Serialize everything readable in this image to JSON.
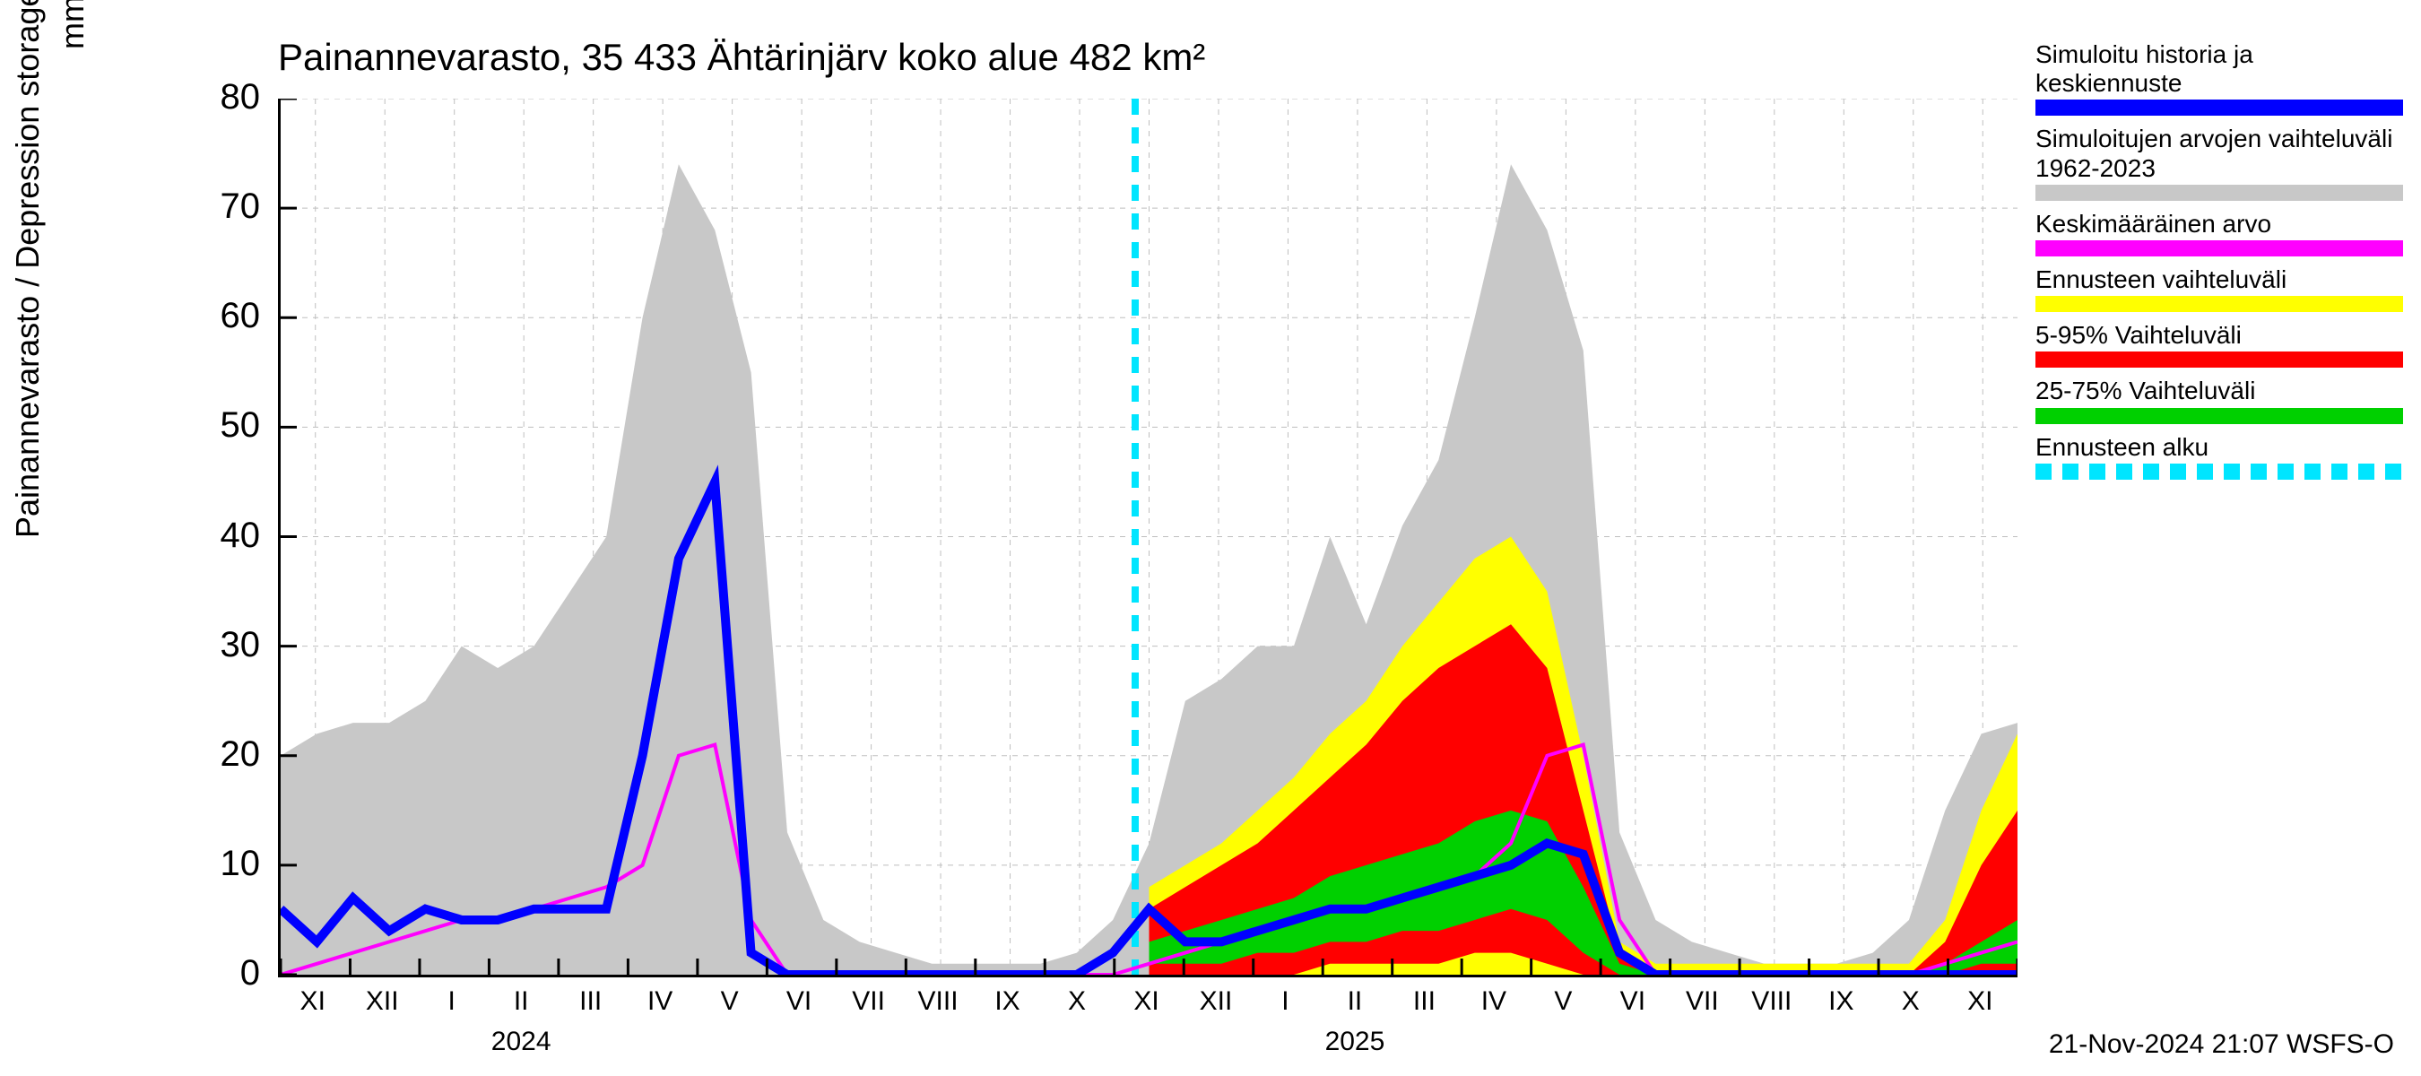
{
  "chart": {
    "type": "area-line-timeseries",
    "title": "Painannevarasto, 35 433 Ähtärinjärv koko alue 482 km²",
    "y_axis_label": "Painannevarasto / Depression storage",
    "y_unit": "mm",
    "footer": "21-Nov-2024 21:07 WSFS-O",
    "background_color": "#ffffff",
    "grid_color": "#bfbfbf",
    "axis_color": "#000000",
    "title_fontsize": 42,
    "label_fontsize": 36,
    "tick_fontsize": 30,
    "ylim": [
      0,
      80
    ],
    "yticks": [
      0,
      10,
      20,
      30,
      40,
      50,
      60,
      70,
      80
    ],
    "x_months": [
      "XI",
      "XII",
      "I",
      "II",
      "III",
      "IV",
      "V",
      "VI",
      "VII",
      "VIII",
      "IX",
      "X",
      "XI",
      "XII",
      "I",
      "II",
      "III",
      "IV",
      "V",
      "VI",
      "VII",
      "VIII",
      "IX",
      "X",
      "XI"
    ],
    "x_years": [
      {
        "label": "2024",
        "at_month_index": 3
      },
      {
        "label": "2025",
        "at_month_index": 15
      }
    ],
    "legend": [
      {
        "label": "Simuloitu historia ja keskiennuste",
        "color": "#0000ff",
        "style": "solid"
      },
      {
        "label": "Simuloitujen arvojen vaihteluväli 1962-2023",
        "color": "#c8c8c8",
        "style": "solid"
      },
      {
        "label": "Keskimääräinen arvo",
        "color": "#ff00ff",
        "style": "solid"
      },
      {
        "label": "Ennusteen vaihteluväli",
        "color": "#ffff00",
        "style": "solid"
      },
      {
        "label": "5-95% Vaihteluväli",
        "color": "#ff0000",
        "style": "solid"
      },
      {
        "label": "25-75% Vaihteluväli",
        "color": "#00d000",
        "style": "solid"
      },
      {
        "label": "Ennusteen alku",
        "color": "#00e5ff",
        "style": "dashed"
      }
    ],
    "forecast_start_month_index": 12.3,
    "series": {
      "hist_range_hi": [
        20,
        22,
        23,
        23,
        25,
        30,
        28,
        30,
        35,
        40,
        60,
        74,
        68,
        55,
        13,
        5,
        3,
        2,
        1,
        1,
        1,
        1,
        2,
        5,
        12,
        25,
        27,
        30,
        30,
        40,
        32,
        41,
        47,
        60,
        74,
        68,
        57,
        13,
        5,
        3,
        2,
        1,
        1,
        1,
        2,
        5,
        15,
        22,
        23
      ],
      "hist_range_lo": [
        0,
        0,
        0,
        0,
        0,
        0,
        0,
        0,
        0,
        0,
        0,
        0,
        0,
        0,
        0,
        0,
        0,
        0,
        0,
        0,
        0,
        0,
        0,
        0,
        0,
        0,
        0,
        0,
        0,
        0,
        0,
        0,
        0,
        0,
        0,
        0,
        0,
        0,
        0,
        0,
        0,
        0,
        0,
        0,
        0,
        0,
        0,
        0,
        0
      ],
      "mean_magenta": [
        0,
        1,
        2,
        3,
        4,
        5,
        5,
        6,
        7,
        8,
        10,
        20,
        21,
        5,
        0,
        0,
        0,
        0,
        0,
        0,
        0,
        0,
        0,
        0,
        1,
        2,
        3,
        4,
        5,
        6,
        6,
        7,
        8,
        9,
        12,
        20,
        21,
        5,
        0,
        0,
        0,
        0,
        0,
        0,
        0,
        0,
        1,
        2,
        3
      ],
      "sim_blue": [
        6,
        3,
        7,
        4,
        6,
        5,
        5,
        6,
        6,
        6,
        20,
        38,
        45,
        2,
        0,
        0,
        0,
        0,
        0,
        0,
        0,
        0,
        0,
        2,
        6,
        3,
        3,
        4,
        5,
        6,
        6,
        7,
        8,
        9,
        10,
        12,
        11,
        2,
        0,
        0,
        0,
        0,
        0,
        0,
        0,
        0,
        0,
        0,
        0
      ],
      "yellow_hi": [
        null,
        null,
        null,
        null,
        null,
        null,
        null,
        null,
        null,
        null,
        null,
        null,
        null,
        null,
        null,
        null,
        null,
        null,
        null,
        null,
        null,
        null,
        null,
        null,
        8,
        10,
        12,
        15,
        18,
        22,
        25,
        30,
        34,
        38,
        40,
        35,
        20,
        3,
        1,
        1,
        1,
        1,
        1,
        1,
        1,
        1,
        5,
        15,
        22
      ],
      "yellow_lo": [
        null,
        null,
        null,
        null,
        null,
        null,
        null,
        null,
        null,
        null,
        null,
        null,
        null,
        null,
        null,
        null,
        null,
        null,
        null,
        null,
        null,
        null,
        null,
        null,
        0,
        0,
        0,
        0,
        0,
        0,
        0,
        0,
        0,
        0,
        0,
        0,
        0,
        0,
        0,
        0,
        0,
        0,
        0,
        0,
        0,
        0,
        0,
        0,
        0
      ],
      "red_hi": [
        null,
        null,
        null,
        null,
        null,
        null,
        null,
        null,
        null,
        null,
        null,
        null,
        null,
        null,
        null,
        null,
        null,
        null,
        null,
        null,
        null,
        null,
        null,
        null,
        6,
        8,
        10,
        12,
        15,
        18,
        21,
        25,
        28,
        30,
        32,
        28,
        15,
        2,
        0,
        0,
        0,
        0,
        0,
        0,
        0,
        0,
        3,
        10,
        15
      ],
      "red_lo": [
        null,
        null,
        null,
        null,
        null,
        null,
        null,
        null,
        null,
        null,
        null,
        null,
        null,
        null,
        null,
        null,
        null,
        null,
        null,
        null,
        null,
        null,
        null,
        null,
        0,
        0,
        0,
        0,
        0,
        1,
        1,
        1,
        1,
        2,
        2,
        1,
        0,
        0,
        0,
        0,
        0,
        0,
        0,
        0,
        0,
        0,
        0,
        0,
        0
      ],
      "green_hi": [
        null,
        null,
        null,
        null,
        null,
        null,
        null,
        null,
        null,
        null,
        null,
        null,
        null,
        null,
        null,
        null,
        null,
        null,
        null,
        null,
        null,
        null,
        null,
        null,
        3,
        4,
        5,
        6,
        7,
        9,
        10,
        11,
        12,
        14,
        15,
        14,
        8,
        1,
        0,
        0,
        0,
        0,
        0,
        0,
        0,
        0,
        1,
        3,
        5
      ],
      "green_lo": [
        null,
        null,
        null,
        null,
        null,
        null,
        null,
        null,
        null,
        null,
        null,
        null,
        null,
        null,
        null,
        null,
        null,
        null,
        null,
        null,
        null,
        null,
        null,
        null,
        1,
        1,
        1,
        2,
        2,
        3,
        3,
        4,
        4,
        5,
        6,
        5,
        2,
        0,
        0,
        0,
        0,
        0,
        0,
        0,
        0,
        0,
        0,
        1,
        1
      ]
    },
    "colors": {
      "hist_range": "#c8c8c8",
      "yellow": "#ffff00",
      "red": "#ff0000",
      "green": "#00d000",
      "blue": "#0000ff",
      "magenta": "#ff00ff",
      "cyan": "#00e5ff"
    },
    "line_widths": {
      "blue": 10,
      "magenta": 4,
      "cyan": 8
    }
  }
}
